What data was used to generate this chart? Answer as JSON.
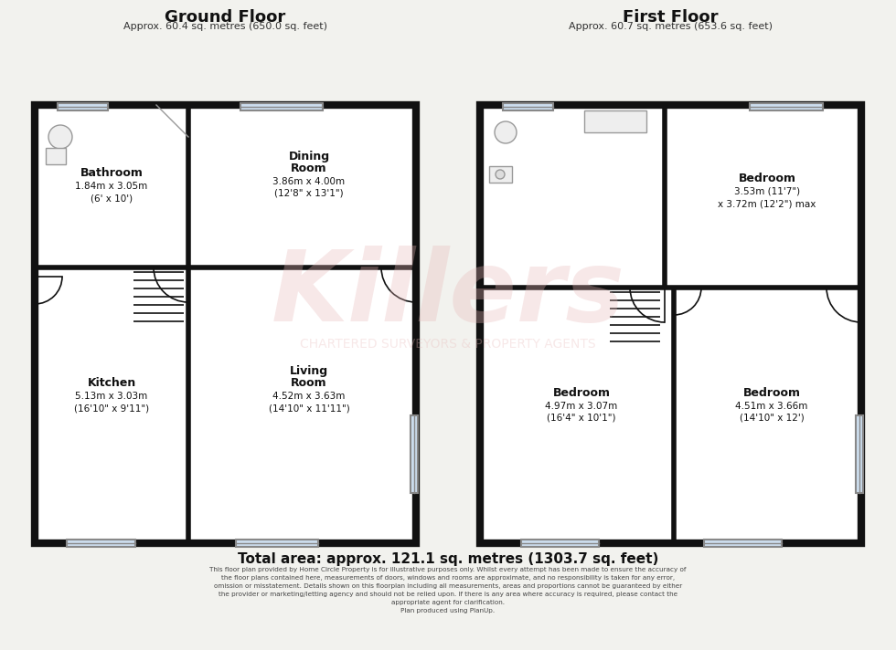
{
  "bg_color": "#f2f2ee",
  "wall_color": "#111111",
  "room_fill": "#ffffff",
  "watermark_color": "#e8b8b8",
  "title_ground": "Ground Floor",
  "subtitle_ground": "Approx. 60.4 sq. metres (650.0 sq. feet)",
  "title_first": "First Floor",
  "subtitle_first": "Approx. 60.7 sq. metres (653.6 sq. feet)",
  "total_area": "Total area: approx. 121.1 sq. metres (1303.7 sq. feet)",
  "watermark": "Killers",
  "watermark_sub": "CHARTERED SURVEYORS & PROPERTY AGENTS",
  "disclaimer_lines": [
    "This floor plan provided by Home Circle Property is for illustrative purposes only. Whilst every attempt has been made to ensure the accuracy of",
    "the floor plans contained here, measurements of doors, windows and rooms are approximate, and no responsibility is taken for any error,",
    "omission or misstatement. Details shown on this floorplan including all measurements, areas and proportions cannot be guaranteed by either",
    "the provider or marketing/letting agency and should not be relied upon. If there is any area where accuracy is required, please contact the",
    "appropriate agent for clarification.",
    "Plan produced using PlanUp."
  ]
}
